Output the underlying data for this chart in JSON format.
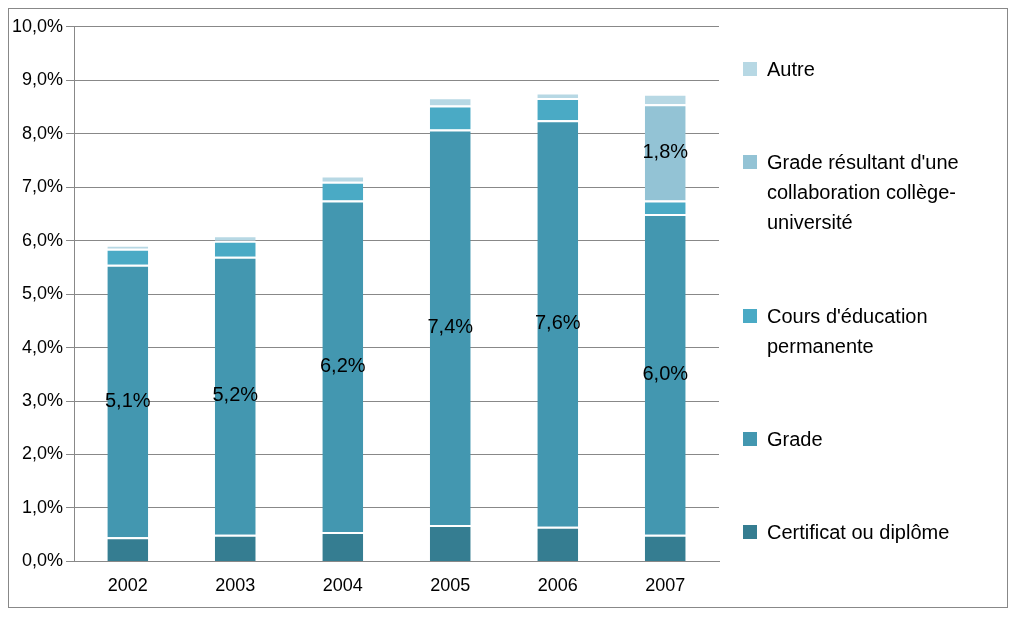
{
  "chart_data": {
    "type": "bar",
    "stacked": true,
    "categories": [
      "2002",
      "2003",
      "2004",
      "2005",
      "2006",
      "2007"
    ],
    "series": [
      {
        "name": "Certificat ou diplôme",
        "color": "#357d91",
        "values": [
          0.45,
          0.5,
          0.55,
          0.68,
          0.65,
          0.5
        ]
      },
      {
        "name": "Grade",
        "color": "#4397b0",
        "values": [
          5.1,
          5.2,
          6.2,
          7.4,
          7.6,
          6.0
        ],
        "value_labels": [
          "5,1%",
          "5,2%",
          "6,2%",
          "7,4%",
          "7,6%",
          "6,0%"
        ]
      },
      {
        "name": "Cours d'éducation permanente",
        "color": "#4aaac5",
        "values": [
          0.3,
          0.3,
          0.35,
          0.45,
          0.42,
          0.25
        ]
      },
      {
        "name": "Grade résultant d'une collaboration collège-université",
        "color": "#93c3d5",
        "values": [
          null,
          null,
          null,
          null,
          null,
          1.8
        ],
        "value_labels": [
          null,
          null,
          null,
          null,
          null,
          "1,8%"
        ]
      },
      {
        "name": "Autre",
        "color": "#b7d8e4",
        "values": [
          0.07,
          0.1,
          0.12,
          0.15,
          0.1,
          0.2
        ]
      }
    ],
    "ylim": [
      0,
      10
    ],
    "yticks": [
      {
        "value": 0,
        "label": "0,0%"
      },
      {
        "value": 1,
        "label": "1,0%"
      },
      {
        "value": 2,
        "label": "2,0%"
      },
      {
        "value": 3,
        "label": "3,0%"
      },
      {
        "value": 4,
        "label": "4,0%"
      },
      {
        "value": 5,
        "label": "5,0%"
      },
      {
        "value": 6,
        "label": "6,0%"
      },
      {
        "value": 7,
        "label": "7,0%"
      },
      {
        "value": 8,
        "label": "8,0%"
      },
      {
        "value": 9,
        "label": "9,0%"
      },
      {
        "value": 10,
        "label": "10,0%"
      }
    ],
    "grid": "y",
    "legend": "right"
  }
}
